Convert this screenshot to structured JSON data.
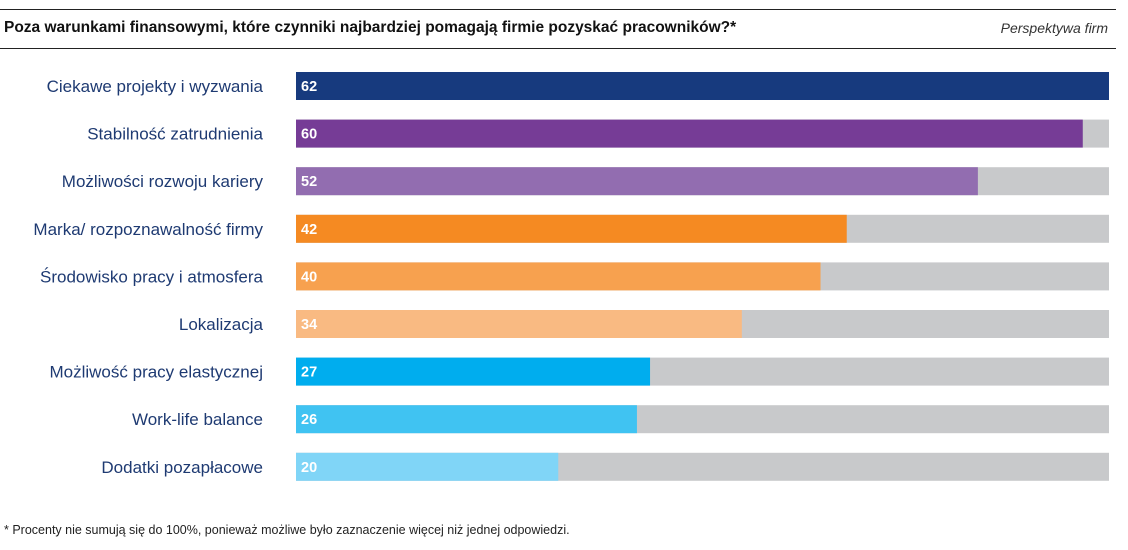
{
  "header": {
    "title": "Poza warunkami finansowymi, które czynniki najbardziej pomagają firmie pozyskać pracowników?*",
    "perspective": "Perspektywa firm"
  },
  "footnote": "* Procenty nie sumują się do 100%, ponieważ możliwe było zaznaczenie więcej niż jednej odpowiedzi.",
  "chart_data": {
    "type": "bar",
    "orientation": "horizontal",
    "title": "Poza warunkami finansowymi, które czynniki najbardziej pomagają firmie pozyskać pracowników?*",
    "categories": [
      "Ciekawe projekty i wyzwania",
      "Stabilność zatrudnienia",
      "Możliwości rozwoju kariery",
      "Marka/ rozpoznawalność firmy",
      "Środowisko pracy i atmosfera",
      "Lokalizacja",
      "Możliwość pracy elastycznej",
      "Work-life balance",
      "Dodatki pozapłacowe"
    ],
    "values": [
      62,
      60,
      52,
      42,
      40,
      34,
      27,
      26,
      20
    ],
    "colors": [
      "#173a7e",
      "#763c96",
      "#926db0",
      "#f58a22",
      "#f7a14f",
      "#f9ba82",
      "#00adee",
      "#40c3f2",
      "#80d5f7"
    ],
    "track_color": "#c8c9cb",
    "xlim": [
      0,
      62
    ],
    "grid": false,
    "legend": "none"
  }
}
